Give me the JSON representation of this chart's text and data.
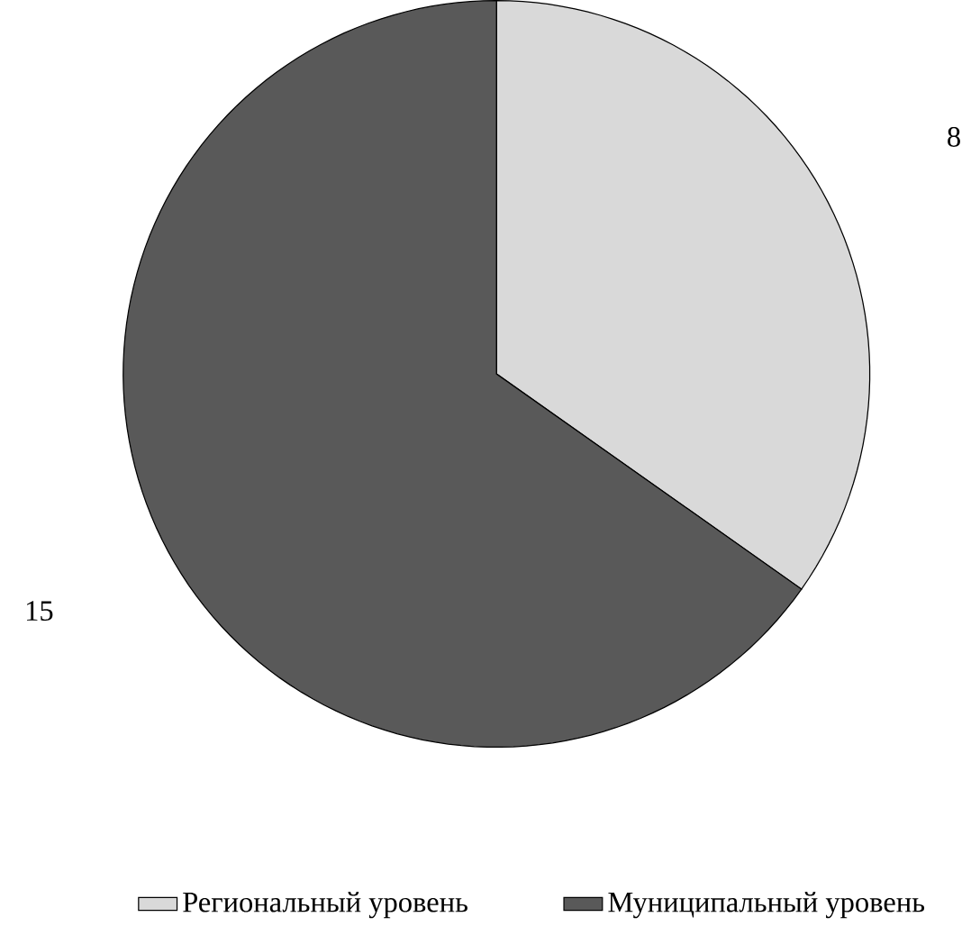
{
  "chart_data": {
    "type": "pie",
    "categories": [
      "Региональный уровень",
      "Муниципальный уровень"
    ],
    "values": [
      8,
      15
    ],
    "colors": [
      "#d9d9d9",
      "#595959"
    ],
    "data_labels": true,
    "legend": "bottom"
  }
}
